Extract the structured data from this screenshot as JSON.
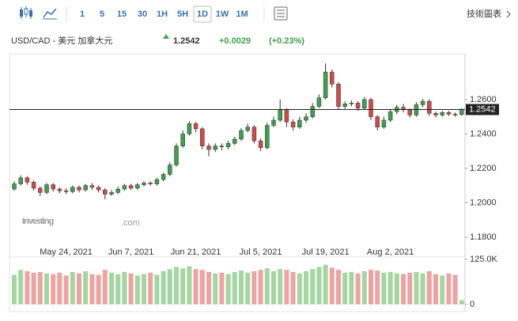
{
  "toolbar": {
    "intervals": [
      "1",
      "5",
      "15",
      "30",
      "1H",
      "5H",
      "1D",
      "1W",
      "1M"
    ],
    "selected": 6,
    "link": "技術圖表"
  },
  "header": {
    "pair": "USD/CAD - 美元 加拿大元",
    "price": "1.2542",
    "change": "+0.0029",
    "change_pct": "(+0.23%)"
  },
  "chart_data": {
    "type": "candlestick",
    "watermark": [
      "Investing",
      ".com"
    ],
    "categories": [
      null,
      null,
      null,
      null,
      null,
      null,
      null,
      null,
      "May 24, 2021",
      null,
      null,
      null,
      null,
      null,
      null,
      null,
      null,
      null,
      "Jun 7, 2021",
      null,
      null,
      null,
      null,
      null,
      null,
      null,
      null,
      null,
      "Jun 21, 2021",
      null,
      null,
      null,
      null,
      null,
      null,
      null,
      null,
      null,
      "Jul 5, 2021",
      null,
      null,
      null,
      null,
      null,
      null,
      null,
      null,
      null,
      "Jul 19, 2021",
      null,
      null,
      null,
      null,
      null,
      null,
      null,
      null,
      null,
      "Aug 2, 2021",
      null,
      null,
      null,
      null,
      null,
      null,
      null,
      null,
      null,
      null,
      null
    ],
    "open": [
      1.208,
      1.211,
      1.2145,
      1.212,
      1.2085,
      1.206,
      1.2105,
      1.208,
      1.207,
      1.2065,
      1.209,
      1.2075,
      1.21,
      1.209,
      1.2075,
      1.205,
      1.206,
      1.208,
      1.21,
      1.2085,
      1.2105,
      1.2115,
      1.211,
      1.2135,
      1.2165,
      1.222,
      1.233,
      1.24,
      1.246,
      1.243,
      1.233,
      1.231,
      1.233,
      1.2325,
      1.2345,
      1.237,
      1.242,
      1.244,
      1.236,
      1.232,
      1.245,
      1.248,
      1.254,
      1.247,
      1.244,
      1.248,
      1.25,
      1.256,
      1.261,
      1.276,
      1.269,
      1.256,
      1.2575,
      1.258,
      1.255,
      1.26,
      1.25,
      1.244,
      1.248,
      1.253,
      1.2555,
      1.254,
      1.251,
      1.257,
      1.259,
      1.252,
      1.251,
      1.2525,
      1.2515,
      1.2513
    ],
    "high": [
      1.2125,
      1.216,
      1.2155,
      1.213,
      1.2095,
      1.2115,
      1.2115,
      1.209,
      1.2085,
      1.21,
      1.21,
      1.211,
      1.2115,
      1.21,
      1.2085,
      1.2075,
      1.2095,
      1.211,
      1.211,
      1.2115,
      1.2125,
      1.2125,
      1.2145,
      1.2175,
      1.2235,
      1.2345,
      1.242,
      1.2475,
      1.247,
      1.244,
      1.2345,
      1.2345,
      1.2345,
      1.236,
      1.2385,
      1.2435,
      1.246,
      1.245,
      1.2375,
      1.2465,
      1.25,
      1.26,
      1.255,
      1.2485,
      1.25,
      1.252,
      1.258,
      1.263,
      1.281,
      1.2775,
      1.27,
      1.259,
      1.2595,
      1.259,
      1.2615,
      1.261,
      1.251,
      1.25,
      1.2545,
      1.257,
      1.2575,
      1.255,
      1.2585,
      1.2605,
      1.26,
      1.253,
      1.2535,
      1.2535,
      1.2525,
      1.255
    ],
    "low": [
      1.207,
      1.21,
      1.2105,
      1.207,
      1.204,
      1.205,
      1.2065,
      1.2055,
      1.205,
      1.2055,
      1.206,
      1.2065,
      1.2075,
      1.206,
      1.202,
      1.204,
      1.205,
      1.207,
      1.2075,
      1.2075,
      1.2095,
      1.21,
      1.21,
      1.2125,
      1.2155,
      1.221,
      1.232,
      1.239,
      1.241,
      1.231,
      1.227,
      1.2295,
      1.2305,
      1.231,
      1.2335,
      1.236,
      1.241,
      1.2345,
      1.23,
      1.231,
      1.244,
      1.247,
      1.244,
      1.242,
      1.243,
      1.2465,
      1.249,
      1.255,
      1.26,
      1.267,
      1.254,
      1.2545,
      1.256,
      1.2535,
      1.254,
      1.248,
      1.242,
      1.243,
      1.247,
      1.2515,
      1.2525,
      1.2495,
      1.25,
      1.2555,
      1.2505,
      1.2495,
      1.25,
      1.2505,
      1.25,
      1.2505
    ],
    "close": [
      1.211,
      1.2145,
      1.212,
      1.2085,
      1.206,
      1.2105,
      1.208,
      1.207,
      1.2065,
      1.209,
      1.2075,
      1.21,
      1.209,
      1.2075,
      1.205,
      1.206,
      1.208,
      1.21,
      1.2085,
      1.2105,
      1.2115,
      1.211,
      1.2135,
      1.2165,
      1.222,
      1.233,
      1.24,
      1.246,
      1.243,
      1.233,
      1.231,
      1.233,
      1.2325,
      1.2345,
      1.237,
      1.242,
      1.244,
      1.236,
      1.232,
      1.245,
      1.248,
      1.254,
      1.247,
      1.244,
      1.248,
      1.25,
      1.256,
      1.261,
      1.276,
      1.269,
      1.256,
      1.2575,
      1.258,
      1.255,
      1.26,
      1.25,
      1.244,
      1.248,
      1.253,
      1.2555,
      1.254,
      1.251,
      1.257,
      1.259,
      1.252,
      1.251,
      1.2525,
      1.2515,
      1.2513,
      1.2542
    ],
    "volume": [
      82000,
      96000,
      92000,
      88000,
      90000,
      86000,
      84000,
      88000,
      80000,
      90000,
      86000,
      92000,
      84000,
      82000,
      96000,
      88000,
      84000,
      90000,
      86000,
      80000,
      84000,
      88000,
      82000,
      92000,
      98000,
      104000,
      100000,
      106000,
      98000,
      96000,
      90000,
      86000,
      88000,
      84000,
      90000,
      94000,
      88000,
      92000,
      96000,
      100000,
      92000,
      98000,
      96000,
      90000,
      86000,
      92000,
      98000,
      104000,
      110000,
      102000,
      96000,
      88000,
      90000,
      86000,
      92000,
      96000,
      94000,
      88000,
      90000,
      86000,
      84000,
      88000,
      90000,
      86000,
      92000,
      84000,
      80000,
      86000,
      82000,
      12000
    ],
    "up_color": "#3d9f4f",
    "down_color": "#d0494c",
    "up_volume_color": "#a3d6a0",
    "down_volume_color": "#eca3a2",
    "ylim": [
      1.1731,
      1.2857
    ],
    "yticks": [
      {
        "value": 1.18,
        "label": "1.1800"
      },
      {
        "value": 1.2,
        "label": "1.2000"
      },
      {
        "value": 1.22,
        "label": "1.2200"
      },
      {
        "value": 1.24,
        "label": "1.2400"
      },
      {
        "value": 1.26,
        "label": "1.2600"
      }
    ],
    "volume_lim": [
      0,
      125000
    ],
    "volume_ticks": [
      0,
      {
        "value": 125000,
        "label": "125.0K"
      }
    ],
    "last_price": 1.2542,
    "grid": false
  }
}
